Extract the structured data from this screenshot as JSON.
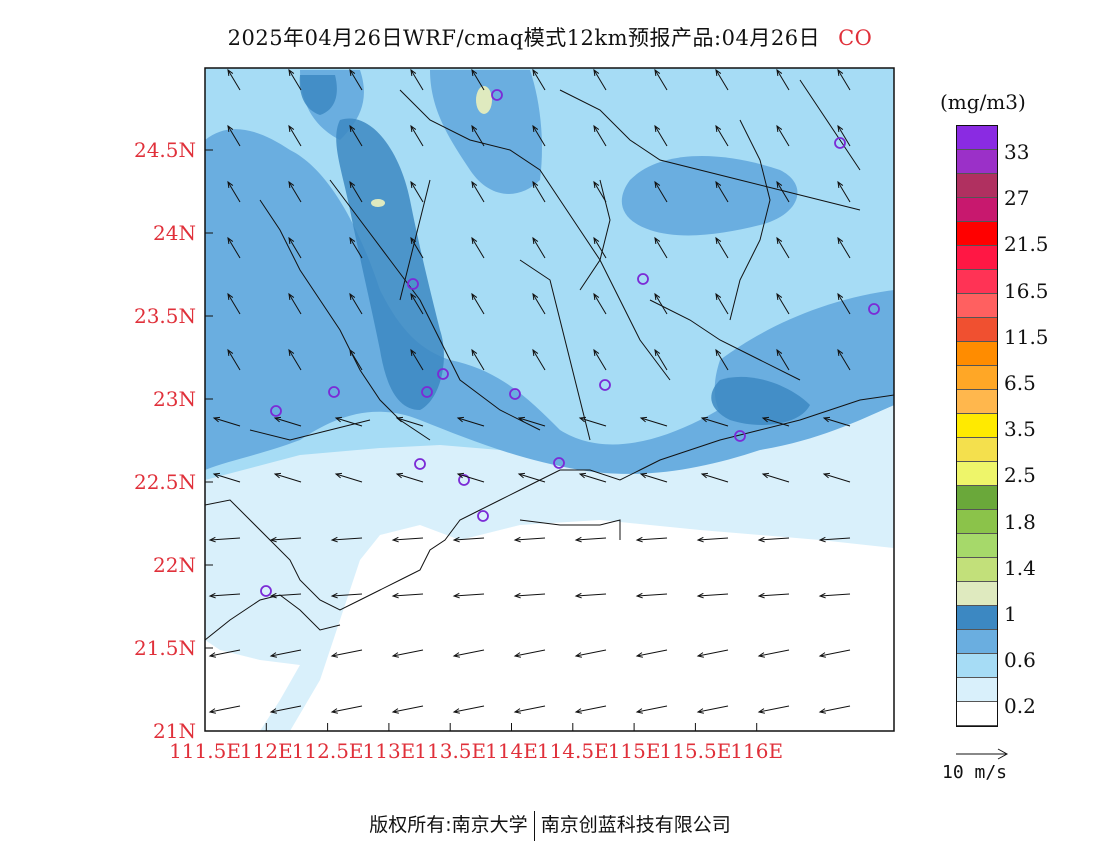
{
  "title": {
    "text": "2025年04月26日WRF/cmaq模式12km预报产品:04月26日",
    "pollutant": "CO"
  },
  "axes": {
    "x_ticks": [
      "111.5E",
      "112E",
      "112.5E",
      "113E",
      "113.5E",
      "114E",
      "114.5E",
      "115E",
      "115.5E",
      "116E"
    ],
    "y_ticks": [
      "21N",
      "21.5N",
      "22N",
      "22.5N",
      "23N",
      "23.5N",
      "24N",
      "24.5N"
    ],
    "tick_color": "#e0303a"
  },
  "legend": {
    "unit": "(mg/m3)",
    "colors": [
      "#8a2be2",
      "#9b30c8",
      "#b03060",
      "#c8186e",
      "#ff0000",
      "#ff1744",
      "#ff3355",
      "#ff6060",
      "#f05030",
      "#ff8c00",
      "#ffa726",
      "#ffb74d",
      "#ffea00",
      "#f4e04d",
      "#eef56a",
      "#6aa83a",
      "#8bc34a",
      "#a6d96a",
      "#c2e07a",
      "#dfeabf",
      "#3c88c2",
      "#6aaee0",
      "#a6dcf5",
      "#d9f0fb",
      "#ffffff"
    ],
    "labels": [
      "33",
      "27",
      "21.5",
      "16.5",
      "11.5",
      "6.5",
      "3.5",
      "2.5",
      "1.8",
      "1.4",
      "1",
      "0.6",
      "0.2"
    ]
  },
  "wind_key": {
    "label": "10 m/s"
  },
  "copyright": {
    "left": "版权所有:南京大学",
    "right": "南京创蓝科技有限公司"
  }
}
